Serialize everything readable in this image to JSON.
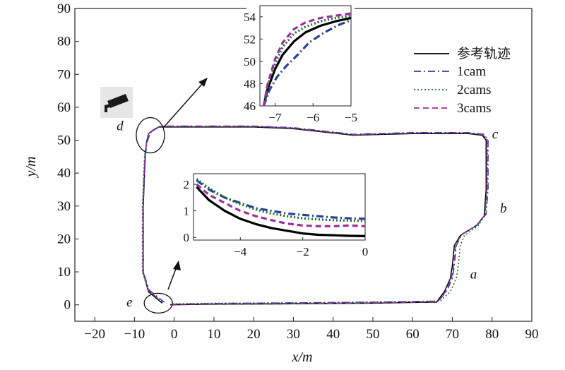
{
  "chart_data": {
    "type": "line",
    "title": "",
    "xlabel": "x/m",
    "ylabel": "y/m",
    "xlim": [
      -25,
      90
    ],
    "ylim": [
      -5,
      90
    ],
    "xticks": [
      -20,
      -10,
      0,
      10,
      20,
      30,
      40,
      50,
      60,
      70,
      80,
      90
    ],
    "yticks": [
      0,
      10,
      20,
      30,
      40,
      50,
      60,
      70,
      80,
      90
    ],
    "x_tick_labels": [
      "−20",
      "−10",
      "0",
      "10",
      "20",
      "30",
      "40",
      "50",
      "60",
      "70",
      "80",
      "90"
    ],
    "y_tick_labels": [
      "0",
      "10",
      "20",
      "30",
      "40",
      "50",
      "60",
      "70",
      "80",
      "90"
    ],
    "grid": false,
    "legend_position": "top-right",
    "series": [
      {
        "name": "参考轨迹",
        "color": "#000000",
        "dash": "solid",
        "x": [
          -1,
          10,
          30,
          40,
          50,
          60,
          66,
          68,
          69.5,
          70,
          70.5,
          72,
          76,
          78,
          78.5,
          78.5,
          78.5,
          77.5,
          74,
          60,
          45,
          30,
          20,
          10,
          -4,
          -6.5,
          -7,
          -7.3,
          -7.8,
          -7.8,
          -6.5,
          -3
        ],
        "y": [
          0,
          0.2,
          0.3,
          0.4,
          0.5,
          0.7,
          0.8,
          4,
          8,
          12,
          18,
          21,
          24,
          27,
          35,
          45,
          50,
          51.5,
          52,
          52,
          51.5,
          53.5,
          54,
          54,
          54,
          52,
          49,
          45,
          30,
          10,
          4,
          0.5
        ]
      },
      {
        "name": "1cam",
        "color": "#2a3f9a",
        "dash": "dashdot",
        "x": [
          -0.5,
          10,
          30,
          40,
          50,
          60,
          66.5,
          68.5,
          70,
          70.5,
          71,
          72.5,
          76.5,
          78.5,
          79,
          79,
          79,
          78,
          74,
          60,
          45,
          30,
          20,
          10,
          -3.5,
          -6,
          -6.8,
          -7.3,
          -7.8,
          -7.8,
          -6.3,
          -2.5
        ],
        "y": [
          0.2,
          0.4,
          0.6,
          0.7,
          0.8,
          1,
          1.1,
          4,
          8,
          12,
          18,
          21.5,
          24.5,
          27.5,
          35,
          45,
          50,
          51.8,
          52.3,
          52.3,
          51.8,
          53.8,
          54.3,
          54.3,
          54.3,
          52.3,
          49.5,
          45,
          30,
          10,
          4.5,
          0.8
        ]
      },
      {
        "name": "2cams",
        "color": "#1a6b2a",
        "dash": "dotted",
        "x": [
          -0.5,
          10,
          30,
          40,
          50,
          60,
          67,
          69.5,
          71,
          71.5,
          72,
          73,
          76.5,
          78.3,
          78.8,
          78.8,
          78.8,
          77.8,
          74,
          60,
          45,
          30,
          20,
          10,
          -3.8,
          -6.3,
          -7,
          -7.5,
          -8,
          -8,
          -6.5,
          -2.8
        ],
        "y": [
          0.3,
          0.5,
          0.6,
          0.7,
          0.9,
          1,
          1.2,
          4,
          8,
          12,
          18,
          21,
          24,
          27.3,
          35,
          45,
          50,
          51.6,
          52.1,
          52.1,
          51.6,
          53.6,
          54.1,
          54.1,
          54.1,
          52.1,
          49.2,
          45,
          30,
          10,
          4.2,
          0.6
        ]
      },
      {
        "name": "3cams",
        "color": "#9b2f9b",
        "dash": "dashed",
        "x": [
          -0.8,
          10,
          30,
          40,
          50,
          60,
          66.3,
          68.3,
          69.8,
          70.3,
          70.8,
          72.2,
          76.2,
          78.2,
          78.7,
          78.7,
          78.7,
          77.7,
          74,
          60,
          45,
          30,
          20,
          10,
          -3.9,
          -6.4,
          -6.9,
          -7.4,
          -7.9,
          -7.9,
          -6.4,
          -2.9
        ],
        "y": [
          0.1,
          0.3,
          0.4,
          0.5,
          0.6,
          0.8,
          0.9,
          4,
          8,
          12,
          18,
          21.2,
          24.2,
          27.2,
          35,
          45,
          50,
          51.7,
          52.2,
          52.2,
          51.7,
          53.7,
          54.2,
          54.2,
          54.2,
          52.2,
          49.3,
          45,
          30,
          10,
          4.3,
          0.7
        ]
      }
    ],
    "point_labels": [
      {
        "text": "a",
        "x": 74.5,
        "y": 8
      },
      {
        "text": "b",
        "x": 82,
        "y": 28
      },
      {
        "text": "c",
        "x": 80,
        "y": 50.5
      },
      {
        "text": "d",
        "x": -14.5,
        "y": 53
      },
      {
        "text": "e",
        "x": -12,
        "y": -0.5
      }
    ],
    "highlight_circles": [
      {
        "name": "d-region",
        "x": -6,
        "y": 51.5
      },
      {
        "name": "e-region",
        "x": -4,
        "y": 0.5
      }
    ],
    "insets": [
      {
        "name": "inset-d",
        "xlim": [
          -7.4,
          -5
        ],
        "ylim": [
          46,
          55
        ],
        "xticks": [
          -7,
          -6,
          -5
        ],
        "yticks": [
          46,
          48,
          50,
          52,
          54
        ],
        "x_tick_labels": [
          "−7",
          "−6",
          "−5"
        ],
        "y_tick_labels": [
          "46",
          "48",
          "50",
          "52",
          "54"
        ],
        "series": [
          {
            "name": "参考轨迹",
            "x": [
              -7.3,
              -7.2,
              -7.0,
              -6.8,
              -6.5,
              -6.2,
              -5.8,
              -5.4,
              -5.0
            ],
            "y": [
              46,
              47.5,
              49.3,
              50.6,
              51.8,
              52.6,
              53.2,
              53.6,
              53.9
            ]
          },
          {
            "name": "1cam",
            "x": [
              -7.3,
              -7.15,
              -6.95,
              -6.7,
              -6.4,
              -6.1,
              -5.7,
              -5.3,
              -5.0
            ],
            "y": [
              46,
              47.4,
              48.6,
              49.6,
              50.6,
              51.7,
              52.6,
              53.3,
              53.7
            ]
          },
          {
            "name": "2cams",
            "x": [
              -7.3,
              -7.2,
              -7.0,
              -6.8,
              -6.5,
              -6.2,
              -5.8,
              -5.4,
              -5.0
            ],
            "y": [
              46,
              47.8,
              49.8,
              51.3,
              52.5,
              53.1,
              53.6,
              53.9,
              54.1
            ]
          },
          {
            "name": "3cams",
            "x": [
              -7.3,
              -7.2,
              -7.0,
              -6.8,
              -6.5,
              -6.2,
              -5.8,
              -5.4,
              -5.0
            ],
            "y": [
              46,
              47.9,
              50.2,
              51.7,
              52.9,
              53.5,
              53.9,
              54.1,
              54.3
            ]
          }
        ]
      },
      {
        "name": "inset-e",
        "xlim": [
          -5.5,
          0
        ],
        "ylim": [
          -0.1,
          2.4
        ],
        "xticks": [
          -4,
          -2,
          0
        ],
        "yticks": [
          0,
          1,
          2
        ],
        "x_tick_labels": [
          "−4",
          "−2",
          "0"
        ],
        "y_tick_labels": [
          "0",
          "1",
          "2"
        ],
        "series": [
          {
            "name": "参考轨迹",
            "x": [
              -5.4,
              -5.0,
              -4.5,
              -4.0,
              -3.5,
              -3.0,
              -2.5,
              -2.0,
              -1.5,
              -1.0,
              -0.5,
              0
            ],
            "y": [
              1.9,
              1.4,
              1.0,
              0.7,
              0.5,
              0.35,
              0.25,
              0.15,
              0.1,
              0.08,
              0.06,
              0.05
            ]
          },
          {
            "name": "1cam",
            "x": [
              -5.4,
              -5.0,
              -4.5,
              -4.0,
              -3.5,
              -3.0,
              -2.5,
              -2.0,
              -1.5,
              -1.0,
              -0.5,
              0
            ],
            "y": [
              2.15,
              1.8,
              1.5,
              1.3,
              1.1,
              1.0,
              0.9,
              0.85,
              0.8,
              0.75,
              0.72,
              0.7
            ]
          },
          {
            "name": "2cams",
            "x": [
              -5.4,
              -5.0,
              -4.5,
              -4.0,
              -3.5,
              -3.0,
              -2.5,
              -2.0,
              -1.5,
              -1.0,
              -0.5,
              0
            ],
            "y": [
              2.2,
              1.85,
              1.5,
              1.25,
              1.05,
              0.9,
              0.8,
              0.72,
              0.68,
              0.65,
              0.63,
              0.62
            ]
          },
          {
            "name": "3cams",
            "x": [
              -5.4,
              -5.0,
              -4.5,
              -4.0,
              -3.5,
              -3.0,
              -2.5,
              -2.0,
              -1.5,
              -1.0,
              -0.5,
              0
            ],
            "y": [
              2.0,
              1.6,
              1.3,
              1.0,
              0.8,
              0.65,
              0.52,
              0.45,
              0.42,
              0.42,
              0.45,
              0.42
            ]
          }
        ]
      }
    ]
  }
}
